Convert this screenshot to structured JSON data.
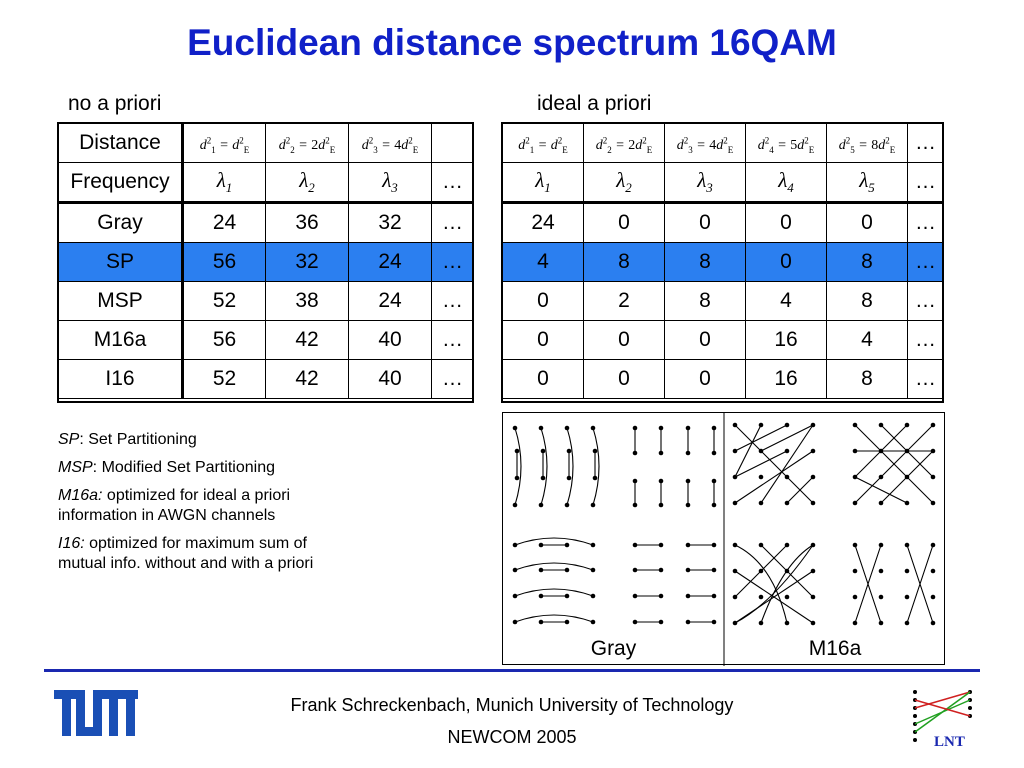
{
  "title": "Euclidean distance spectrum 16QAM",
  "left_label": "no a priori",
  "right_label": "ideal a priori",
  "left_table": {
    "header_distance": "Distance",
    "header_frequency": "Frequency",
    "ellipsis": "…",
    "rows": [
      {
        "name": "Gray",
        "values": [
          "24",
          "36",
          "32",
          "…"
        ]
      },
      {
        "name": "SP",
        "values": [
          "56",
          "32",
          "24",
          "…"
        ]
      },
      {
        "name": "MSP",
        "values": [
          "52",
          "38",
          "24",
          "…"
        ]
      },
      {
        "name": "M16a",
        "values": [
          "56",
          "42",
          "40",
          "…"
        ]
      },
      {
        "name": "I16",
        "values": [
          "52",
          "42",
          "40",
          "…"
        ]
      }
    ]
  },
  "right_table": {
    "ellipsis": "…",
    "rows": [
      {
        "values": [
          "24",
          "0",
          "0",
          "0",
          "0",
          "…"
        ]
      },
      {
        "values": [
          "4",
          "8",
          "8",
          "0",
          "8",
          "…"
        ]
      },
      {
        "values": [
          "0",
          "2",
          "8",
          "4",
          "8",
          "…"
        ]
      },
      {
        "values": [
          "0",
          "0",
          "0",
          "16",
          "4",
          "…"
        ]
      },
      {
        "values": [
          "0",
          "0",
          "0",
          "16",
          "8",
          "…"
        ]
      }
    ]
  },
  "math": {
    "d": "d",
    "E": "E",
    "sq": "2",
    "eq": " = ",
    "coef2": "2",
    "coef4": "4",
    "coef5": "5",
    "coef8": "8",
    "i1": "1",
    "i2": "2",
    "i3": "3",
    "i4": "4",
    "i5": "5",
    "lambda": "λ"
  },
  "legend": {
    "sp_abbr": "SP",
    "sp_text": ": Set Partitioning",
    "msp_abbr": "MSP",
    "msp_text": ": Modified Set Partitioning",
    "m16a_abbr": "M16a:",
    "m16a_text": " optimized for ideal a priori information in AWGN channels",
    "i16_abbr": "I16:",
    "i16_text": " optimized for maximum sum of mutual info. without and with a priori"
  },
  "diagram": {
    "left_caption": "Gray",
    "right_caption": "M16a"
  },
  "footer": {
    "author": "Frank Schreckenbach, Munich University of Technology",
    "event": "NEWCOM 2005",
    "logo_left": "TUM",
    "logo_right": "LNT"
  },
  "colors": {
    "title": "#1020c8",
    "highlight": "#2b7ff0",
    "footer_line": "#1a28b0"
  }
}
